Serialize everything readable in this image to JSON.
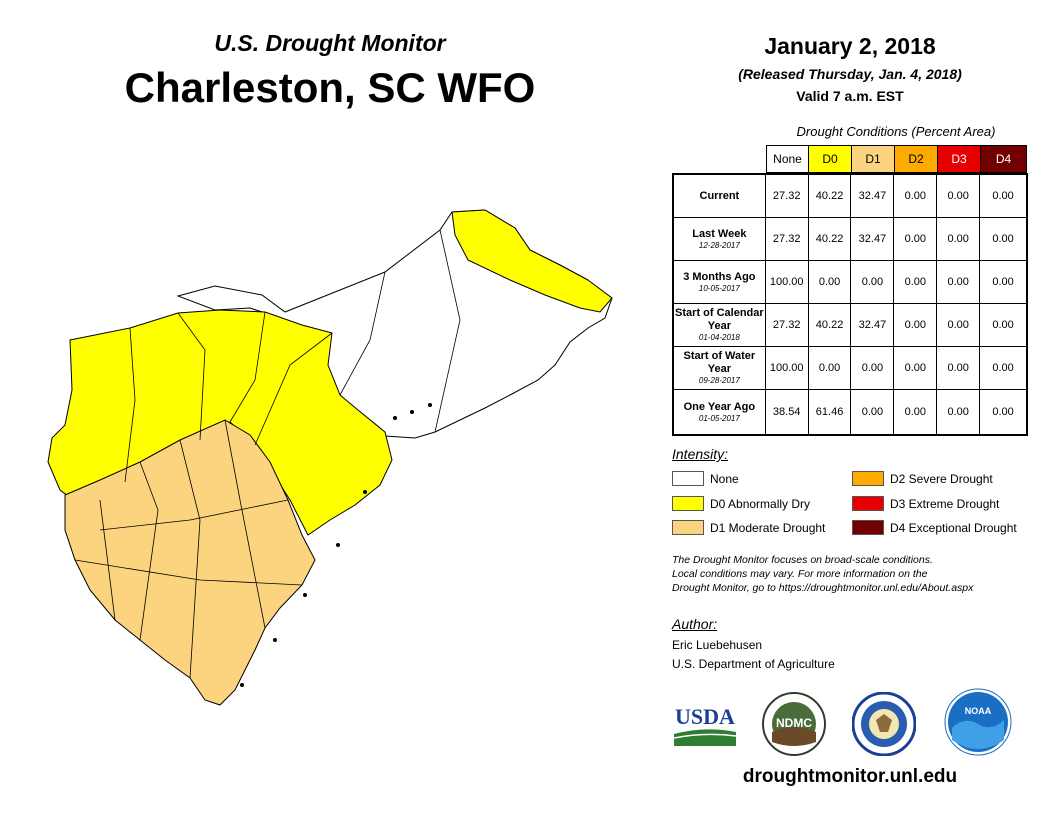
{
  "header": {
    "subtitle": "U.S. Drought Monitor",
    "title": "Charleston, SC WFO",
    "date": "January 2, 2018",
    "released": "(Released Thursday, Jan. 4, 2018)",
    "valid": "Valid 7 a.m. EST"
  },
  "table": {
    "caption": "Drought Conditions (Percent Area)",
    "columns": [
      "None",
      "D0",
      "D1",
      "D2",
      "D3",
      "D4"
    ],
    "rows": [
      {
        "label": "Current",
        "date": "",
        "values": [
          "27.32",
          "40.22",
          "32.47",
          "0.00",
          "0.00",
          "0.00"
        ]
      },
      {
        "label": "Last Week",
        "date": "12-28-2017",
        "values": [
          "27.32",
          "40.22",
          "32.47",
          "0.00",
          "0.00",
          "0.00"
        ]
      },
      {
        "label": "3 Months Ago",
        "date": "10-05-2017",
        "values": [
          "100.00",
          "0.00",
          "0.00",
          "0.00",
          "0.00",
          "0.00"
        ]
      },
      {
        "label": "Start of Calendar Year",
        "date": "01-04-2018",
        "values": [
          "27.32",
          "40.22",
          "32.47",
          "0.00",
          "0.00",
          "0.00"
        ]
      },
      {
        "label": "Start of Water Year",
        "date": "09-28-2017",
        "values": [
          "100.00",
          "0.00",
          "0.00",
          "0.00",
          "0.00",
          "0.00"
        ]
      },
      {
        "label": "One Year Ago",
        "date": "01-05-2017",
        "values": [
          "38.54",
          "61.46",
          "0.00",
          "0.00",
          "0.00",
          "0.00"
        ]
      }
    ]
  },
  "colors": {
    "none": "#ffffff",
    "d0": "#ffff00",
    "d1": "#fcd37f",
    "d2": "#ffaa00",
    "d3": "#e60000",
    "d4": "#730000",
    "noaa_blue": "#1a6fc4",
    "usda_green": "#2e7d32",
    "usda_blue": "#1c3f94"
  },
  "legend": {
    "title": "Intensity:",
    "items": [
      {
        "label": "None",
        "color": "#ffffff"
      },
      {
        "label": "D0 Abnormally Dry",
        "color": "#ffff00"
      },
      {
        "label": "D1 Moderate Drought",
        "color": "#fcd37f"
      },
      {
        "label": "D2 Severe Drought",
        "color": "#ffaa00"
      },
      {
        "label": "D3 Extreme Drought",
        "color": "#e60000"
      },
      {
        "label": "D4 Exceptional Drought",
        "color": "#730000"
      }
    ]
  },
  "note": {
    "line1": "The Drought Monitor focuses on broad-scale conditions.",
    "line2": "Local conditions may vary. For more information on the",
    "line3": "Drought Monitor, go to https://droughtmonitor.unl.edu/About.aspx"
  },
  "author": {
    "title": "Author:",
    "name": "Eric Luebehusen",
    "org": "U.S. Department of Agriculture"
  },
  "logos": {
    "usda": "USDA",
    "ndmc": "NDMC",
    "noaa": "NOAA"
  },
  "website": "droughtmonitor.unl.edu"
}
